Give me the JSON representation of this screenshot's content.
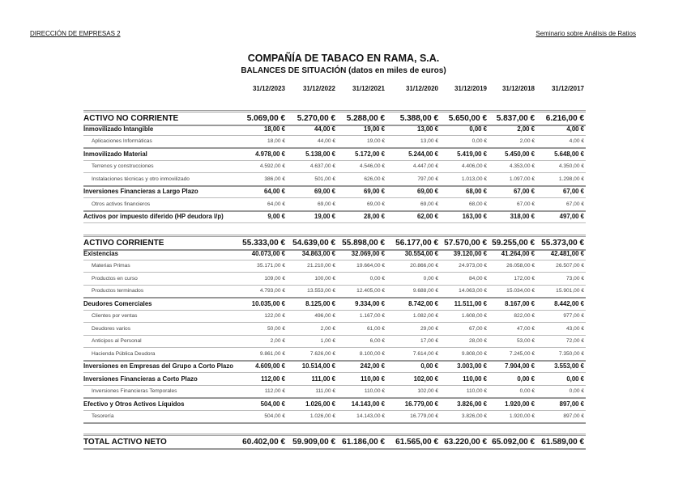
{
  "header": {
    "left": "DIRECCIÓN DE EMPRESAS 2",
    "right": "Seminario sobre Análisis de Ratios"
  },
  "title": "COMPAÑÍA DE TABACO EN RAMA, S.A.",
  "subtitle": "BALANCES DE SITUACIÓN (datos en miles de euros)",
  "dates": [
    "31/12/2023",
    "31/12/2022",
    "31/12/2021",
    "31/12/2020",
    "31/12/2019",
    "31/12/2018",
    "31/12/2017"
  ],
  "rows": [
    {
      "type": "section",
      "label": "ACTIVO NO CORRIENTE",
      "values": [
        "5.069,00 €",
        "5.270,00 €",
        "5.288,00 €",
        "5.388,00 €",
        "5.650,00 €",
        "5.837,00 €",
        "6.216,00 €"
      ]
    },
    {
      "type": "group",
      "label": "Inmovilizado Intangible",
      "values": [
        "18,00 €",
        "44,00 €",
        "19,00 €",
        "13,00 €",
        "0,00 €",
        "2,00 €",
        "4,00 €"
      ]
    },
    {
      "type": "item",
      "label": "Aplicaciones Informáticas",
      "values": [
        "18,00 €",
        "44,00 €",
        "19,00 €",
        "13,00 €",
        "0,00 €",
        "2,00 €",
        "4,00 €"
      ]
    },
    {
      "type": "group",
      "label": "Inmovilizado Material",
      "values": [
        "4.978,00 €",
        "5.138,00 €",
        "5.172,00 €",
        "5.244,00 €",
        "5.419,00 €",
        "5.450,00 €",
        "5.648,00 €"
      ]
    },
    {
      "type": "item",
      "label": "Terrenos y construcciones",
      "values": [
        "4.592,00 €",
        "4.637,00 €",
        "4.546,00 €",
        "4.447,00 €",
        "4.406,00 €",
        "4.353,00 €",
        "4.350,00 €"
      ]
    },
    {
      "type": "item",
      "label": "Instalaciones técnicas y otro inmovilizado",
      "values": [
        "386,00 €",
        "501,00 €",
        "626,00 €",
        "797,00 €",
        "1.013,00 €",
        "1.097,00 €",
        "1.298,00 €"
      ]
    },
    {
      "type": "group",
      "label": "Inversiones Financieras a Largo Plazo",
      "values": [
        "64,00 €",
        "69,00 €",
        "69,00 €",
        "69,00 €",
        "68,00 €",
        "67,00 €",
        "67,00 €"
      ]
    },
    {
      "type": "item",
      "label": "Otros activos financieros",
      "values": [
        "64,00 €",
        "69,00 €",
        "69,00 €",
        "69,00 €",
        "68,00 €",
        "67,00 €",
        "67,00 €"
      ]
    },
    {
      "type": "group",
      "label": "Activos por impuesto diferido (HP deudora l/p)",
      "values": [
        "9,00 €",
        "19,00 €",
        "28,00 €",
        "62,00 €",
        "163,00 €",
        "318,00 €",
        "497,00 €"
      ]
    },
    {
      "type": "section",
      "label": "ACTIVO CORRIENTE",
      "values": [
        "55.333,00 €",
        "54.639,00 €",
        "55.898,00 €",
        "56.177,00 €",
        "57.570,00 €",
        "59.255,00 €",
        "55.373,00 €"
      ]
    },
    {
      "type": "group",
      "label": "Existencias",
      "values": [
        "40.073,00 €",
        "34.863,00 €",
        "32.069,00 €",
        "30.554,00 €",
        "39.120,00 €",
        "41.264,00 €",
        "42.481,00 €"
      ]
    },
    {
      "type": "item",
      "label": "Materias Primas",
      "values": [
        "35.171,00 €",
        "21.210,00 €",
        "19.664,00 €",
        "20.866,00 €",
        "24.973,00 €",
        "26.058,00 €",
        "26.507,00 €"
      ]
    },
    {
      "type": "item",
      "label": "Productos en curso",
      "values": [
        "109,00 €",
        "100,00 €",
        "0,00 €",
        "0,00 €",
        "84,00 €",
        "172,00 €",
        "73,00 €"
      ]
    },
    {
      "type": "item",
      "label": "Productos terminados",
      "values": [
        "4.793,00 €",
        "13.553,00 €",
        "12.405,00 €",
        "9.688,00 €",
        "14.063,00 €",
        "15.034,00 €",
        "15.901,00 €"
      ]
    },
    {
      "type": "group",
      "label": "Deudores Comerciales",
      "values": [
        "10.035,00 €",
        "8.125,00 €",
        "9.334,00 €",
        "8.742,00 €",
        "11.511,00 €",
        "8.167,00 €",
        "8.442,00 €"
      ]
    },
    {
      "type": "item",
      "label": "Clientes por ventas",
      "values": [
        "122,00 €",
        "496,00 €",
        "1.167,00 €",
        "1.082,00 €",
        "1.608,00 €",
        "822,00 €",
        "977,00 €"
      ]
    },
    {
      "type": "item",
      "label": "Deudores varios",
      "values": [
        "50,00 €",
        "2,00 €",
        "61,00 €",
        "29,00 €",
        "67,00 €",
        "47,00 €",
        "43,00 €"
      ]
    },
    {
      "type": "item",
      "label": "Anticipos al Personal",
      "values": [
        "2,00 €",
        "1,00 €",
        "6,00 €",
        "17,00 €",
        "28,00 €",
        "53,00 €",
        "72,00 €"
      ]
    },
    {
      "type": "item",
      "label": "Hacienda Pública Deudora",
      "values": [
        "9.861,00 €",
        "7.626,00 €",
        "8.100,00 €",
        "7.614,00 €",
        "9.808,00 €",
        "7.245,00 €",
        "7.350,00 €"
      ]
    },
    {
      "type": "group",
      "label": "Inversiones en Empresas del Grupo a Corto Plazo",
      "values": [
        "4.609,00 €",
        "10.514,00 €",
        "242,00 €",
        "0,00 €",
        "3.003,00 €",
        "7.904,00 €",
        "3.553,00 €"
      ]
    },
    {
      "type": "group",
      "label": "Inversiones Financieras a Corto Plazo",
      "values": [
        "112,00 €",
        "111,00 €",
        "110,00 €",
        "102,00 €",
        "110,00 €",
        "0,00 €",
        "0,00 €"
      ]
    },
    {
      "type": "item",
      "label": "Inversiones Financieras Temporales",
      "values": [
        "112,00 €",
        "111,00 €",
        "110,00 €",
        "102,00 €",
        "110,00 €",
        "0,00 €",
        "0,00 €"
      ]
    },
    {
      "type": "group",
      "label": "Efectivo y Otros Activos Líquidos",
      "values": [
        "504,00 €",
        "1.026,00 €",
        "14.143,00 €",
        "16.779,00 €",
        "3.826,00 €",
        "1.920,00 €",
        "897,00 €"
      ]
    },
    {
      "type": "item",
      "label": "Tesorería",
      "values": [
        "504,00 €",
        "1.026,00 €",
        "14.143,00 €",
        "16.779,00 €",
        "3.826,00 €",
        "1.920,00 €",
        "897,00 €"
      ]
    },
    {
      "type": "total",
      "label": "TOTAL ACTIVO NETO",
      "values": [
        "60.402,00 €",
        "59.909,00 €",
        "61.186,00 €",
        "61.565,00 €",
        "63.220,00 €",
        "65.092,00 €",
        "61.589,00 €"
      ]
    }
  ]
}
